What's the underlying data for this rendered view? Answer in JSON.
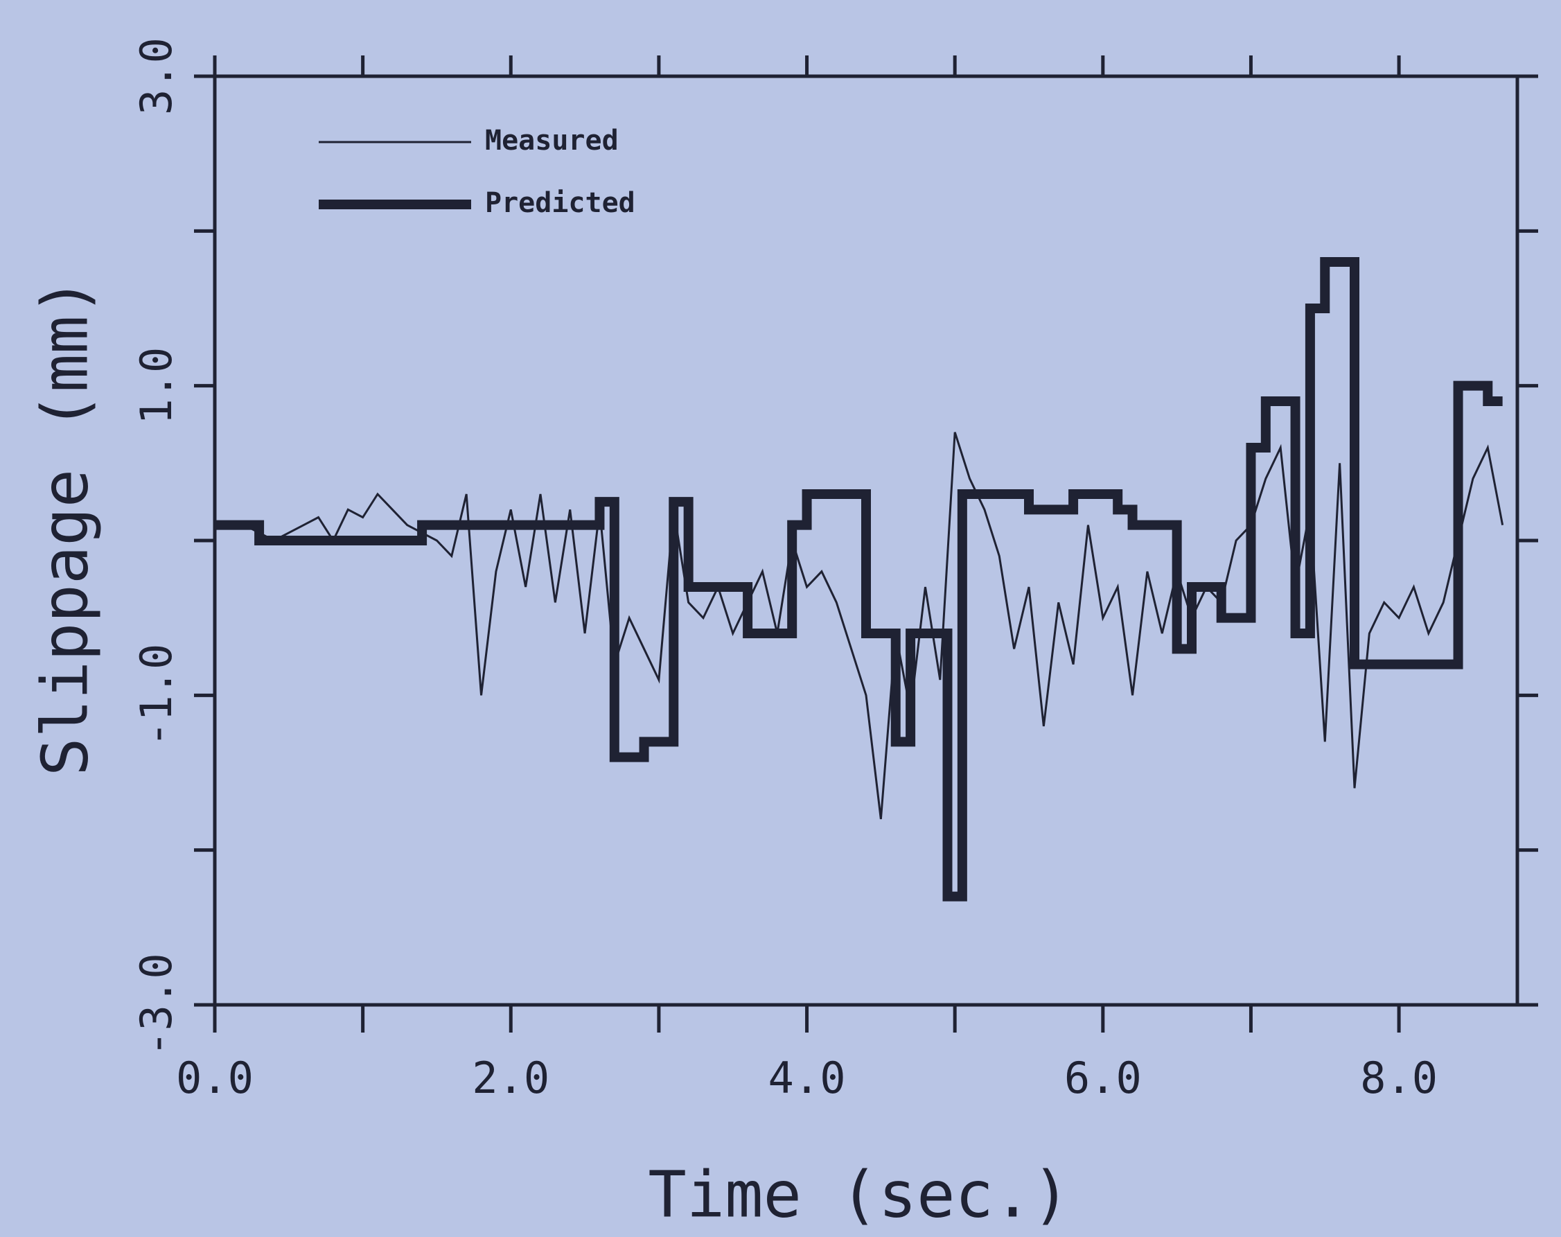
{
  "chart_data": {
    "type": "line",
    "xlabel": "Time (sec.)",
    "ylabel": "Slippage (mm)",
    "xlim": [
      0,
      8.8
    ],
    "ylim": [
      -3,
      3
    ],
    "xticks": [
      {
        "value": 0,
        "label": "0.0"
      },
      {
        "value": 1,
        "label": null
      },
      {
        "value": 2,
        "label": "2.0"
      },
      {
        "value": 3,
        "label": null
      },
      {
        "value": 4,
        "label": "4.0"
      },
      {
        "value": 5,
        "label": null
      },
      {
        "value": 6,
        "label": "6.0"
      },
      {
        "value": 7,
        "label": null
      },
      {
        "value": 8,
        "label": "8.0"
      }
    ],
    "yticks": [
      {
        "value": -3,
        "label": "-3.0"
      },
      {
        "value": -2,
        "label": null
      },
      {
        "value": -1,
        "label": "-1.0"
      },
      {
        "value": 0,
        "label": null
      },
      {
        "value": 1,
        "label": "1.0"
      },
      {
        "value": 2,
        "label": null
      },
      {
        "value": 3,
        "label": "3.0"
      }
    ],
    "grid": false,
    "legend": "upper left",
    "series": [
      {
        "name": "Measured",
        "color": "#1f2233",
        "width": 3,
        "x": [
          0,
          0.1,
          0.2,
          0.3,
          0.4,
          0.5,
          0.6,
          0.7,
          0.8,
          0.9,
          1.0,
          1.1,
          1.2,
          1.3,
          1.4,
          1.5,
          1.6,
          1.7,
          1.8,
          1.9,
          2.0,
          2.1,
          2.2,
          2.3,
          2.4,
          2.5,
          2.6,
          2.7,
          2.8,
          2.9,
          3.0,
          3.1,
          3.2,
          3.3,
          3.4,
          3.5,
          3.6,
          3.7,
          3.8,
          3.9,
          4.0,
          4.1,
          4.2,
          4.3,
          4.4,
          4.5,
          4.6,
          4.7,
          4.8,
          4.9,
          5.0,
          5.1,
          5.2,
          5.3,
          5.4,
          5.5,
          5.6,
          5.7,
          5.8,
          5.9,
          6.0,
          6.1,
          6.2,
          6.3,
          6.4,
          6.5,
          6.6,
          6.7,
          6.8,
          6.9,
          7.0,
          7.1,
          7.2,
          7.3,
          7.4,
          7.5,
          7.6,
          7.7,
          7.8,
          7.9,
          8.0,
          8.1,
          8.2,
          8.3,
          8.4,
          8.5,
          8.6,
          8.7
        ],
        "values": [
          0.1,
          0.1,
          0.1,
          0.05,
          0.0,
          0.05,
          0.1,
          0.15,
          0.0,
          0.2,
          0.15,
          0.3,
          0.2,
          0.1,
          0.05,
          0.0,
          -0.1,
          0.3,
          -1.0,
          -0.2,
          0.2,
          -0.3,
          0.3,
          -0.4,
          0.2,
          -0.6,
          0.2,
          -0.8,
          -0.5,
          -0.7,
          -0.9,
          0.2,
          -0.4,
          -0.5,
          -0.3,
          -0.6,
          -0.4,
          -0.2,
          -0.6,
          0.0,
          -0.3,
          -0.2,
          -0.4,
          -0.7,
          -1.0,
          -1.8,
          -0.6,
          -1.1,
          -0.3,
          -0.9,
          0.7,
          0.4,
          0.2,
          -0.1,
          -0.7,
          -0.3,
          -1.2,
          -0.4,
          -0.8,
          0.1,
          -0.5,
          -0.3,
          -1.0,
          -0.2,
          -0.6,
          -0.2,
          -0.5,
          -0.3,
          -0.4,
          0.0,
          0.1,
          0.4,
          0.6,
          -0.3,
          0.2,
          -1.3,
          0.5,
          -1.6,
          -0.6,
          -0.4,
          -0.5,
          -0.3,
          -0.6,
          -0.4,
          0.0,
          0.4,
          0.6,
          0.1
        ]
      },
      {
        "name": "Predicted",
        "color": "#1f2233",
        "width": 14,
        "x": [
          0,
          0.3,
          0.3,
          1.4,
          1.4,
          2.6,
          2.6,
          2.7,
          2.7,
          2.9,
          2.9,
          3.1,
          3.1,
          3.2,
          3.2,
          3.6,
          3.6,
          3.9,
          3.9,
          4.0,
          4.0,
          4.4,
          4.4,
          4.6,
          4.6,
          4.7,
          4.7,
          4.95,
          4.95,
          5.05,
          5.05,
          5.5,
          5.5,
          5.8,
          5.8,
          6.1,
          6.1,
          6.2,
          6.2,
          6.5,
          6.5,
          6.6,
          6.6,
          6.8,
          6.8,
          7.0,
          7.0,
          7.1,
          7.1,
          7.3,
          7.3,
          7.4,
          7.4,
          7.5,
          7.5,
          7.7,
          7.7,
          8.4,
          8.4,
          8.6,
          8.6,
          8.7
        ],
        "values": [
          0.1,
          0.1,
          0.0,
          0.0,
          0.1,
          0.1,
          0.25,
          0.25,
          -1.4,
          -1.4,
          -1.3,
          -1.3,
          0.25,
          0.25,
          -0.3,
          -0.3,
          -0.6,
          -0.6,
          0.1,
          0.1,
          0.3,
          0.3,
          -0.6,
          -0.6,
          -1.3,
          -1.3,
          -0.6,
          -0.6,
          -2.3,
          -2.3,
          0.3,
          0.3,
          0.2,
          0.2,
          0.3,
          0.3,
          0.2,
          0.2,
          0.1,
          0.1,
          -0.7,
          -0.7,
          -0.3,
          -0.3,
          -0.5,
          -0.5,
          0.6,
          0.6,
          0.9,
          0.9,
          -0.6,
          -0.6,
          1.5,
          1.5,
          1.8,
          1.8,
          -0.8,
          -0.8,
          1.0,
          1.0,
          0.9,
          0.9
        ]
      }
    ]
  }
}
